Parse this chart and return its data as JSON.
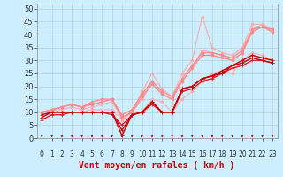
{
  "xlabel": "Vent moyen/en rafales ( km/h )",
  "bg_color": "#cceeff",
  "grid_color": "#aacccc",
  "xlim": [
    -0.5,
    23.5
  ],
  "ylim": [
    0,
    52
  ],
  "yticks": [
    0,
    5,
    10,
    15,
    20,
    25,
    30,
    35,
    40,
    45,
    50
  ],
  "xticks": [
    0,
    1,
    2,
    3,
    4,
    5,
    6,
    7,
    8,
    9,
    10,
    11,
    12,
    13,
    14,
    15,
    16,
    17,
    18,
    19,
    20,
    21,
    22,
    23
  ],
  "series": [
    {
      "x": [
        0,
        1,
        2,
        3,
        4,
        5,
        6,
        7,
        8,
        9,
        10,
        11,
        12,
        13,
        14,
        15,
        16,
        17,
        18,
        19,
        20,
        21,
        22,
        23
      ],
      "y": [
        10,
        11,
        11,
        12,
        11,
        12,
        13,
        14,
        8,
        10,
        15,
        21,
        17,
        15,
        22,
        27,
        34,
        33,
        32,
        30,
        33,
        42,
        44,
        41
      ],
      "color": "#ffaaaa",
      "lw": 0.8,
      "marker": "o",
      "ms": 2.0,
      "zorder": 2
    },
    {
      "x": [
        0,
        1,
        2,
        3,
        4,
        5,
        6,
        7,
        8,
        9,
        10,
        11,
        12,
        13,
        14,
        15,
        16,
        17,
        18,
        19,
        20,
        21,
        22,
        23
      ],
      "y": [
        10,
        11,
        12,
        13,
        12,
        13,
        14,
        15,
        7,
        10,
        18,
        25,
        19,
        16,
        25,
        30,
        47,
        35,
        33,
        32,
        35,
        44,
        44,
        42
      ],
      "color": "#ffaaaa",
      "lw": 0.8,
      "marker": "o",
      "ms": 2.0,
      "zorder": 2
    },
    {
      "x": [
        0,
        1,
        2,
        3,
        4,
        5,
        6,
        7,
        8,
        9,
        10,
        11,
        12,
        13,
        14,
        15,
        16,
        17,
        18,
        19,
        20,
        21,
        22,
        23
      ],
      "y": [
        10,
        11,
        12,
        13,
        12,
        13,
        14,
        15,
        9,
        11,
        17,
        22,
        18,
        16,
        23,
        28,
        33,
        33,
        32,
        31,
        34,
        42,
        43,
        42
      ],
      "color": "#ff8888",
      "lw": 0.9,
      "marker": "o",
      "ms": 2.0,
      "zorder": 3
    },
    {
      "x": [
        0,
        1,
        2,
        3,
        4,
        5,
        6,
        7,
        8,
        9,
        10,
        11,
        12,
        13,
        14,
        15,
        16,
        17,
        18,
        19,
        20,
        21,
        22,
        23
      ],
      "y": [
        10,
        11,
        12,
        13,
        12,
        14,
        15,
        15,
        8,
        10,
        16,
        21,
        17,
        15,
        22,
        27,
        32,
        32,
        31,
        30,
        33,
        41,
        43,
        41
      ],
      "color": "#ff8888",
      "lw": 0.9,
      "marker": "o",
      "ms": 2.0,
      "zorder": 3
    },
    {
      "x": [
        0,
        1,
        2,
        3,
        4,
        5,
        6,
        7,
        8,
        9,
        10,
        11,
        12,
        13,
        14,
        15,
        16,
        17,
        18,
        19,
        20,
        21,
        22,
        23
      ],
      "y": [
        8,
        10,
        10,
        10,
        10,
        10,
        10,
        10,
        1,
        9,
        10,
        14,
        10,
        10,
        19,
        20,
        23,
        24,
        25,
        28,
        29,
        31,
        30,
        29
      ],
      "color": "#cc0000",
      "lw": 1.0,
      "marker": "+",
      "ms": 3.0,
      "zorder": 5
    },
    {
      "x": [
        0,
        1,
        2,
        3,
        4,
        5,
        6,
        7,
        8,
        9,
        10,
        11,
        12,
        13,
        14,
        15,
        16,
        17,
        18,
        19,
        20,
        21,
        22,
        23
      ],
      "y": [
        9,
        10,
        10,
        10,
        10,
        10,
        10,
        10,
        3,
        9,
        10,
        14,
        10,
        10,
        19,
        20,
        23,
        24,
        26,
        28,
        30,
        32,
        31,
        30
      ],
      "color": "#cc0000",
      "lw": 1.0,
      "marker": "+",
      "ms": 3.0,
      "zorder": 5
    },
    {
      "x": [
        0,
        1,
        2,
        3,
        4,
        5,
        6,
        7,
        8,
        9,
        10,
        11,
        12,
        13,
        14,
        15,
        16,
        17,
        18,
        19,
        20,
        21,
        22,
        23
      ],
      "y": [
        7,
        9,
        9,
        10,
        10,
        10,
        10,
        9,
        5,
        9,
        10,
        13,
        10,
        10,
        18,
        19,
        22,
        23,
        25,
        27,
        28,
        30,
        30,
        29
      ],
      "color": "#dd1111",
      "lw": 0.9,
      "marker": "+",
      "ms": 2.5,
      "zorder": 4
    },
    {
      "x": [
        0,
        1,
        2,
        3,
        4,
        5,
        6,
        7,
        8,
        9,
        10,
        11,
        12,
        13,
        14,
        15,
        16,
        17,
        18,
        19,
        20,
        21,
        22,
        23
      ],
      "y": [
        10,
        11,
        10,
        10,
        10,
        11,
        11,
        11,
        7,
        10,
        10,
        15,
        14,
        10,
        15,
        18,
        22,
        25,
        26,
        25,
        30,
        33,
        32,
        30
      ],
      "color": "#ffaaaa",
      "lw": 0.8,
      "marker": "o",
      "ms": 2.0,
      "zorder": 2
    }
  ],
  "arrow_color": "#cc0000",
  "xlabel_color": "#cc0000",
  "xlabel_fontsize": 7,
  "ytick_fontsize": 6,
  "xtick_fontsize": 5.5
}
